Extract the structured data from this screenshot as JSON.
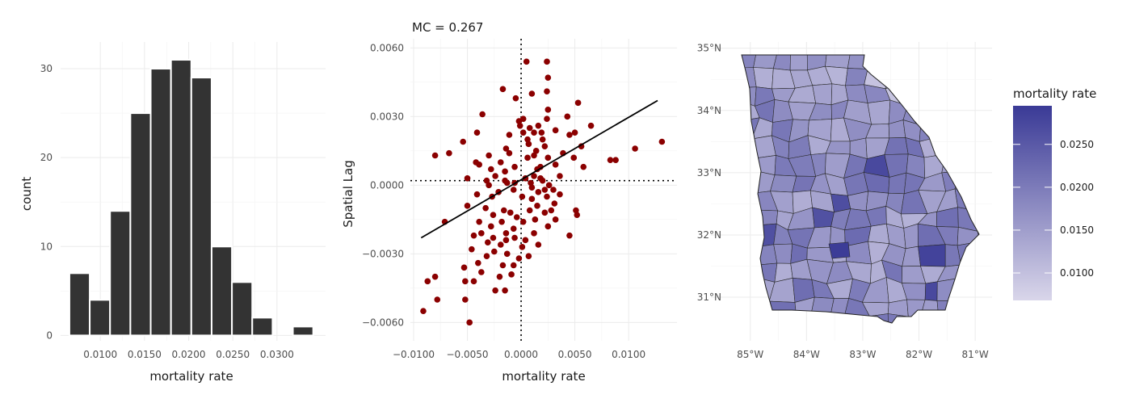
{
  "chart_data": [
    {
      "type": "bar",
      "subtype": "histogram",
      "xlabel": "mortality rate",
      "ylabel": "count",
      "bins": [
        {
          "x0": 0.0065,
          "x1": 0.0088,
          "count": 7
        },
        {
          "x0": 0.0088,
          "x1": 0.0111,
          "count": 4
        },
        {
          "x0": 0.0111,
          "x1": 0.0134,
          "count": 14
        },
        {
          "x0": 0.0134,
          "x1": 0.0157,
          "count": 25
        },
        {
          "x0": 0.0157,
          "x1": 0.018,
          "count": 30
        },
        {
          "x0": 0.018,
          "x1": 0.0203,
          "count": 31
        },
        {
          "x0": 0.0203,
          "x1": 0.0226,
          "count": 29
        },
        {
          "x0": 0.0226,
          "x1": 0.0249,
          "count": 10
        },
        {
          "x0": 0.0249,
          "x1": 0.0272,
          "count": 6
        },
        {
          "x0": 0.0272,
          "x1": 0.0295,
          "count": 2
        },
        {
          "x0": 0.0295,
          "x1": 0.0318,
          "count": 0
        },
        {
          "x0": 0.0318,
          "x1": 0.0341,
          "count": 1
        }
      ],
      "xlim": [
        0.0055,
        0.0355
      ],
      "ylim": [
        -0.6,
        33
      ],
      "xticks": [
        {
          "value": 0.01,
          "label": "0.0100"
        },
        {
          "value": 0.015,
          "label": "0.0150"
        },
        {
          "value": 0.02,
          "label": "0.0200"
        },
        {
          "value": 0.025,
          "label": "0.0250"
        },
        {
          "value": 0.03,
          "label": "0.0300"
        }
      ],
      "yticks": [
        {
          "value": 0,
          "label": "0"
        },
        {
          "value": 10,
          "label": "10"
        },
        {
          "value": 20,
          "label": "20"
        },
        {
          "value": 30,
          "label": "30"
        }
      ],
      "colors": {
        "bar": "#333333",
        "bar_outline": "#ffffff"
      },
      "grid": true
    },
    {
      "type": "scatter",
      "title": "MC = 0.267",
      "xlabel": "mortality rate",
      "ylabel": "Spatial Lag",
      "xlim": [
        -0.0103,
        0.0145
      ],
      "ylim": [
        -0.0068,
        0.0064
      ],
      "xticks": [
        {
          "value": -0.01,
          "label": "−0.0100"
        },
        {
          "value": -0.005,
          "label": "−0.0050"
        },
        {
          "value": 0.0,
          "label": "0.0000"
        },
        {
          "value": 0.005,
          "label": "0.0050"
        },
        {
          "value": 0.01,
          "label": "0.0100"
        }
      ],
      "yticks": [
        {
          "value": -0.006,
          "label": "−0.0060"
        },
        {
          "value": -0.003,
          "label": "−0.0030"
        },
        {
          "value": 0.0,
          "label": "0.0000"
        },
        {
          "value": 0.003,
          "label": "0.0030"
        },
        {
          "value": 0.006,
          "label": "0.0060"
        }
      ],
      "ref_lines": {
        "vertical_x": 0.0,
        "horizontal_y": 0.0002
      },
      "regression_line": {
        "x": [
          -0.0093,
          0.0127
        ],
        "y": [
          -0.0023,
          0.0037
        ]
      },
      "points": [
        [
          0.0005,
          0.0054
        ],
        [
          0.0024,
          0.0054
        ],
        [
          -0.0017,
          0.0042
        ],
        [
          0.001,
          0.004
        ],
        [
          0.0025,
          0.0047
        ],
        [
          0.0024,
          0.0041
        ],
        [
          -0.0005,
          0.0038
        ],
        [
          0.0053,
          0.0036
        ],
        [
          0.0025,
          0.0033
        ],
        [
          -0.0036,
          0.0031
        ],
        [
          0.0024,
          0.0029
        ],
        [
          0.0043,
          0.003
        ],
        [
          -0.0002,
          0.0028
        ],
        [
          0.0002,
          0.0029
        ],
        [
          -0.0001,
          0.0026
        ],
        [
          0.0008,
          0.0025
        ],
        [
          0.0016,
          0.0026
        ],
        [
          0.0065,
          0.0026
        ],
        [
          0.0002,
          0.0023
        ],
        [
          -0.0041,
          0.0023
        ],
        [
          0.0012,
          0.0023
        ],
        [
          0.0019,
          0.0023
        ],
        [
          0.0032,
          0.0024
        ],
        [
          0.005,
          0.0023
        ],
        [
          -0.0011,
          0.0022
        ],
        [
          0.0045,
          0.0022
        ],
        [
          -0.0054,
          0.0019
        ],
        [
          0.0006,
          0.002
        ],
        [
          0.002,
          0.002
        ],
        [
          0.0056,
          0.0017
        ],
        [
          0.0007,
          0.0018
        ],
        [
          0.0022,
          0.0017
        ],
        [
          -0.0014,
          0.0016
        ],
        [
          0.0014,
          0.0015
        ],
        [
          -0.0067,
          0.0014
        ],
        [
          -0.0011,
          0.0014
        ],
        [
          0.0039,
          0.0014
        ],
        [
          0.0025,
          0.0012
        ],
        [
          -0.008,
          0.0013
        ],
        [
          -0.003,
          0.0013
        ],
        [
          0.0006,
          0.0012
        ],
        [
          0.0012,
          0.0013
        ],
        [
          0.0049,
          0.0012
        ],
        [
          0.0106,
          0.0016
        ],
        [
          0.0083,
          0.0011
        ],
        [
          0.0088,
          0.0011
        ],
        [
          0.0131,
          0.0019
        ],
        [
          -0.0042,
          0.001
        ],
        [
          -0.0019,
          0.001
        ],
        [
          0.0032,
          0.0009
        ],
        [
          0.0018,
          0.0008
        ],
        [
          -0.0039,
          0.0009
        ],
        [
          -0.0006,
          0.0008
        ],
        [
          -0.0028,
          0.0007
        ],
        [
          0.0015,
          0.0007
        ],
        [
          0.0058,
          0.0008
        ],
        [
          -0.0015,
          0.0006
        ],
        [
          0.0012,
          0.0004
        ],
        [
          -0.0024,
          0.0004
        ],
        [
          0.0004,
          0.0003
        ],
        [
          -0.005,
          0.0003
        ],
        [
          0.0018,
          0.0003
        ],
        [
          -0.0032,
          0.0002
        ],
        [
          -0.0015,
          0.0002
        ],
        [
          0.0036,
          0.0004
        ],
        [
          0.002,
          0.0002
        ],
        [
          0.0009,
          0.0001
        ],
        [
          -0.0013,
          0.0001
        ],
        [
          -0.0006,
          0.0001
        ],
        [
          -0.003,
          0.0
        ],
        [
          0.0026,
          0.0
        ],
        [
          0.001,
          -0.0001
        ],
        [
          -0.0007,
          -0.0002
        ],
        [
          0.0022,
          -0.0002
        ],
        [
          -0.0021,
          -0.0003
        ],
        [
          0.0016,
          -0.0003
        ],
        [
          0.003,
          -0.0002
        ],
        [
          -0.0041,
          -0.0004
        ],
        [
          0.0036,
          -0.0004
        ],
        [
          0.0001,
          -0.0005
        ],
        [
          -0.0027,
          -0.0005
        ],
        [
          0.0024,
          -0.0005
        ],
        [
          0.001,
          -0.0006
        ],
        [
          0.0031,
          -0.0008
        ],
        [
          -0.005,
          -0.0009
        ],
        [
          0.0015,
          -0.0009
        ],
        [
          -0.0033,
          -0.001
        ],
        [
          0.0008,
          -0.0011
        ],
        [
          -0.0016,
          -0.0011
        ],
        [
          0.0028,
          -0.0011
        ],
        [
          0.0051,
          -0.0011
        ],
        [
          -0.001,
          -0.0012
        ],
        [
          0.0022,
          -0.0012
        ],
        [
          -0.0026,
          -0.0013
        ],
        [
          0.0052,
          -0.0013
        ],
        [
          -0.0004,
          -0.0014
        ],
        [
          0.0032,
          -0.0015
        ],
        [
          -0.0071,
          -0.0016
        ],
        [
          -0.0039,
          -0.0016
        ],
        [
          -0.0018,
          -0.0016
        ],
        [
          0.0002,
          -0.0016
        ],
        [
          0.0013,
          -0.0015
        ],
        [
          -0.0028,
          -0.0018
        ],
        [
          0.0025,
          -0.0018
        ],
        [
          -0.0007,
          -0.0019
        ],
        [
          -0.0037,
          -0.0021
        ],
        [
          -0.0014,
          -0.0021
        ],
        [
          0.0012,
          -0.0021
        ],
        [
          -0.0044,
          -0.0022
        ],
        [
          0.0045,
          -0.0022
        ],
        [
          -0.0026,
          -0.0023
        ],
        [
          -0.0006,
          -0.0023
        ],
        [
          0.0004,
          -0.0024
        ],
        [
          -0.0014,
          -0.0024
        ],
        [
          -0.0031,
          -0.0025
        ],
        [
          0.0016,
          -0.0026
        ],
        [
          -0.0019,
          -0.0026
        ],
        [
          0.0001,
          -0.0027
        ],
        [
          -0.0046,
          -0.0028
        ],
        [
          -0.0025,
          -0.0029
        ],
        [
          -0.0013,
          -0.003
        ],
        [
          -0.0032,
          -0.0031
        ],
        [
          -0.0002,
          -0.0032
        ],
        [
          0.0007,
          -0.0031
        ],
        [
          -0.004,
          -0.0034
        ],
        [
          -0.0017,
          -0.0035
        ],
        [
          -0.0007,
          -0.0035
        ],
        [
          -0.0053,
          -0.0036
        ],
        [
          -0.0037,
          -0.0038
        ],
        [
          -0.0044,
          -0.0042
        ],
        [
          -0.0087,
          -0.0042
        ],
        [
          -0.008,
          -0.004
        ],
        [
          -0.002,
          -0.004
        ],
        [
          -0.0009,
          -0.0039
        ],
        [
          -0.0052,
          -0.0042
        ],
        [
          -0.0024,
          -0.0046
        ],
        [
          -0.0015,
          -0.0046
        ],
        [
          -0.0078,
          -0.005
        ],
        [
          -0.0052,
          -0.005
        ],
        [
          -0.0091,
          -0.0055
        ],
        [
          -0.0048,
          -0.006
        ]
      ],
      "colors": {
        "point": "#8b0000",
        "line": "#000000"
      },
      "grid": true
    },
    {
      "type": "heatmap",
      "subtype": "choropleth",
      "legend_title": "mortality rate",
      "legend_placement": "right",
      "xticks": [
        {
          "value": -85,
          "label": "85°W"
        },
        {
          "value": -84,
          "label": "84°W"
        },
        {
          "value": -83,
          "label": "83°W"
        },
        {
          "value": -82,
          "label": "82°W"
        },
        {
          "value": -81,
          "label": "81°W"
        }
      ],
      "yticks": [
        {
          "value": 35,
          "label": "35°N"
        },
        {
          "value": 34,
          "label": "34°N"
        },
        {
          "value": 33,
          "label": "33°N"
        },
        {
          "value": 32,
          "label": "32°N"
        },
        {
          "value": 31,
          "label": "31°N"
        }
      ],
      "lon_range": [
        -85.7,
        -80.7
      ],
      "lat_range": [
        30.3,
        35.1
      ],
      "color_scale": {
        "low": "#d9d6ea",
        "high": "#3a3a96",
        "min": 0.0068,
        "max": 0.0295
      },
      "legend_ticks": [
        {
          "value": 0.01,
          "label": "0.0100"
        },
        {
          "value": 0.015,
          "label": "0.0150"
        },
        {
          "value": 0.02,
          "label": "0.0200"
        },
        {
          "value": 0.025,
          "label": "0.0250"
        }
      ],
      "grid": true
    }
  ]
}
